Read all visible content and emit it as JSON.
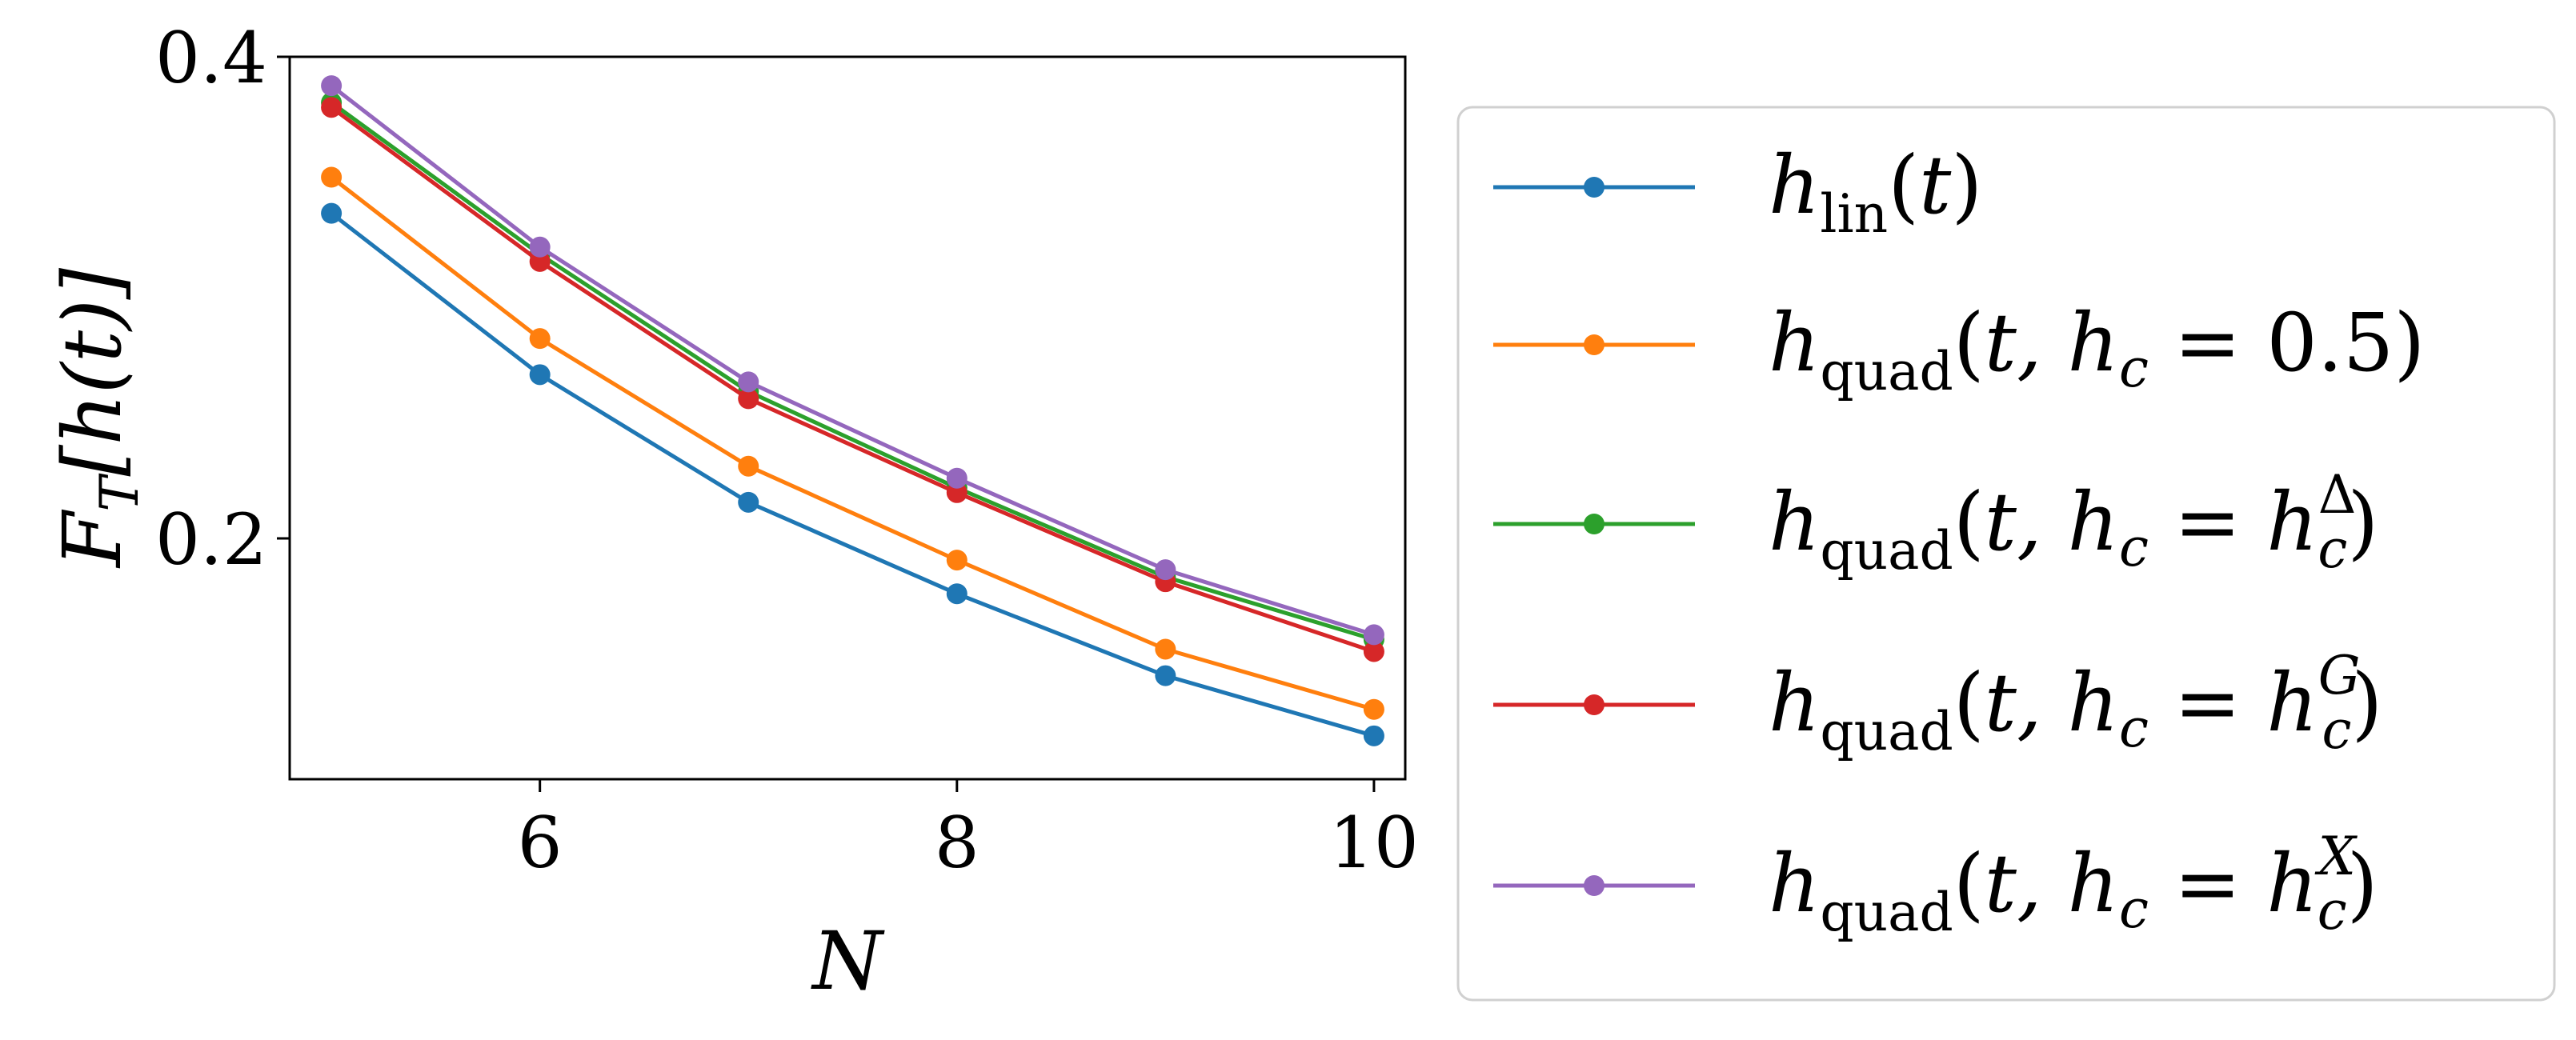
{
  "chart_data": {
    "type": "line",
    "xlabel": "N",
    "ylabel": "F_T[h(t)]",
    "x": [
      5,
      6,
      7,
      8,
      9,
      10
    ],
    "xlim": [
      4.8,
      10.15
    ],
    "ylim": [
      0.1,
      0.4
    ],
    "xticks": [
      6,
      8,
      10
    ],
    "xtick_labels": [
      "6",
      "8",
      "10"
    ],
    "yticks": [
      0.2,
      0.4
    ],
    "ytick_labels": [
      "0.2",
      "0.4"
    ],
    "grid": false,
    "legend_placement": "right, outside plot",
    "series": [
      {
        "id": "lin",
        "name": "h_lin(t)",
        "color": "#1f77b4",
        "values": [
          0.335,
          0.268,
          0.215,
          0.177,
          0.143,
          0.118
        ]
      },
      {
        "id": "half",
        "name": "h_quad(t, h_c = 0.5)",
        "color": "#ff7f0e",
        "values": [
          0.35,
          0.283,
          0.23,
          0.191,
          0.154,
          0.129
        ]
      },
      {
        "id": "delta",
        "name": "h_quad(t, h_c = h_c^Δ)",
        "color": "#2ca02c",
        "values": [
          0.381,
          0.318,
          0.261,
          0.221,
          0.184,
          0.158
        ]
      },
      {
        "id": "g",
        "name": "h_quad(t, h_c = h_c^G)",
        "color": "#d62728",
        "values": [
          0.379,
          0.315,
          0.258,
          0.219,
          0.182,
          0.153
        ]
      },
      {
        "id": "x",
        "name": "h_quad(t, h_c = h_c^X)",
        "color": "#9467bd",
        "values": [
          0.388,
          0.321,
          0.265,
          0.225,
          0.187,
          0.16
        ]
      }
    ]
  },
  "legend": {
    "entries": [
      {
        "base": "h",
        "sub": "lin",
        "open": "(",
        "arg": "t",
        "eq": "",
        "val": "",
        "sup": "",
        "close": ")"
      },
      {
        "base": "h",
        "sub": "quad",
        "open": "(",
        "arg": "t, h",
        "hsub": "c",
        "eq": " = ",
        "val": "0.5",
        "sup": "",
        "close": ")"
      },
      {
        "base": "h",
        "sub": "quad",
        "open": "(",
        "arg": "t, h",
        "hsub": "c",
        "eq": " = ",
        "val": "h",
        "sup": "Δ",
        "vsub": "c",
        "close": ")"
      },
      {
        "base": "h",
        "sub": "quad",
        "open": "(",
        "arg": "t, h",
        "hsub": "c",
        "eq": " = ",
        "val": "h",
        "sup": "G",
        "vsub": "c",
        "close": ")"
      },
      {
        "base": "h",
        "sub": "quad",
        "open": "(",
        "arg": "t, h",
        "hsub": "c",
        "eq": " = ",
        "val": "h",
        "sup": "X",
        "vsub": "c",
        "close": ")"
      }
    ]
  },
  "labels": {
    "x_axis": "N",
    "y_axis_main": "F",
    "y_axis_sub": "T",
    "y_axis_rest": "[h(t)]"
  }
}
